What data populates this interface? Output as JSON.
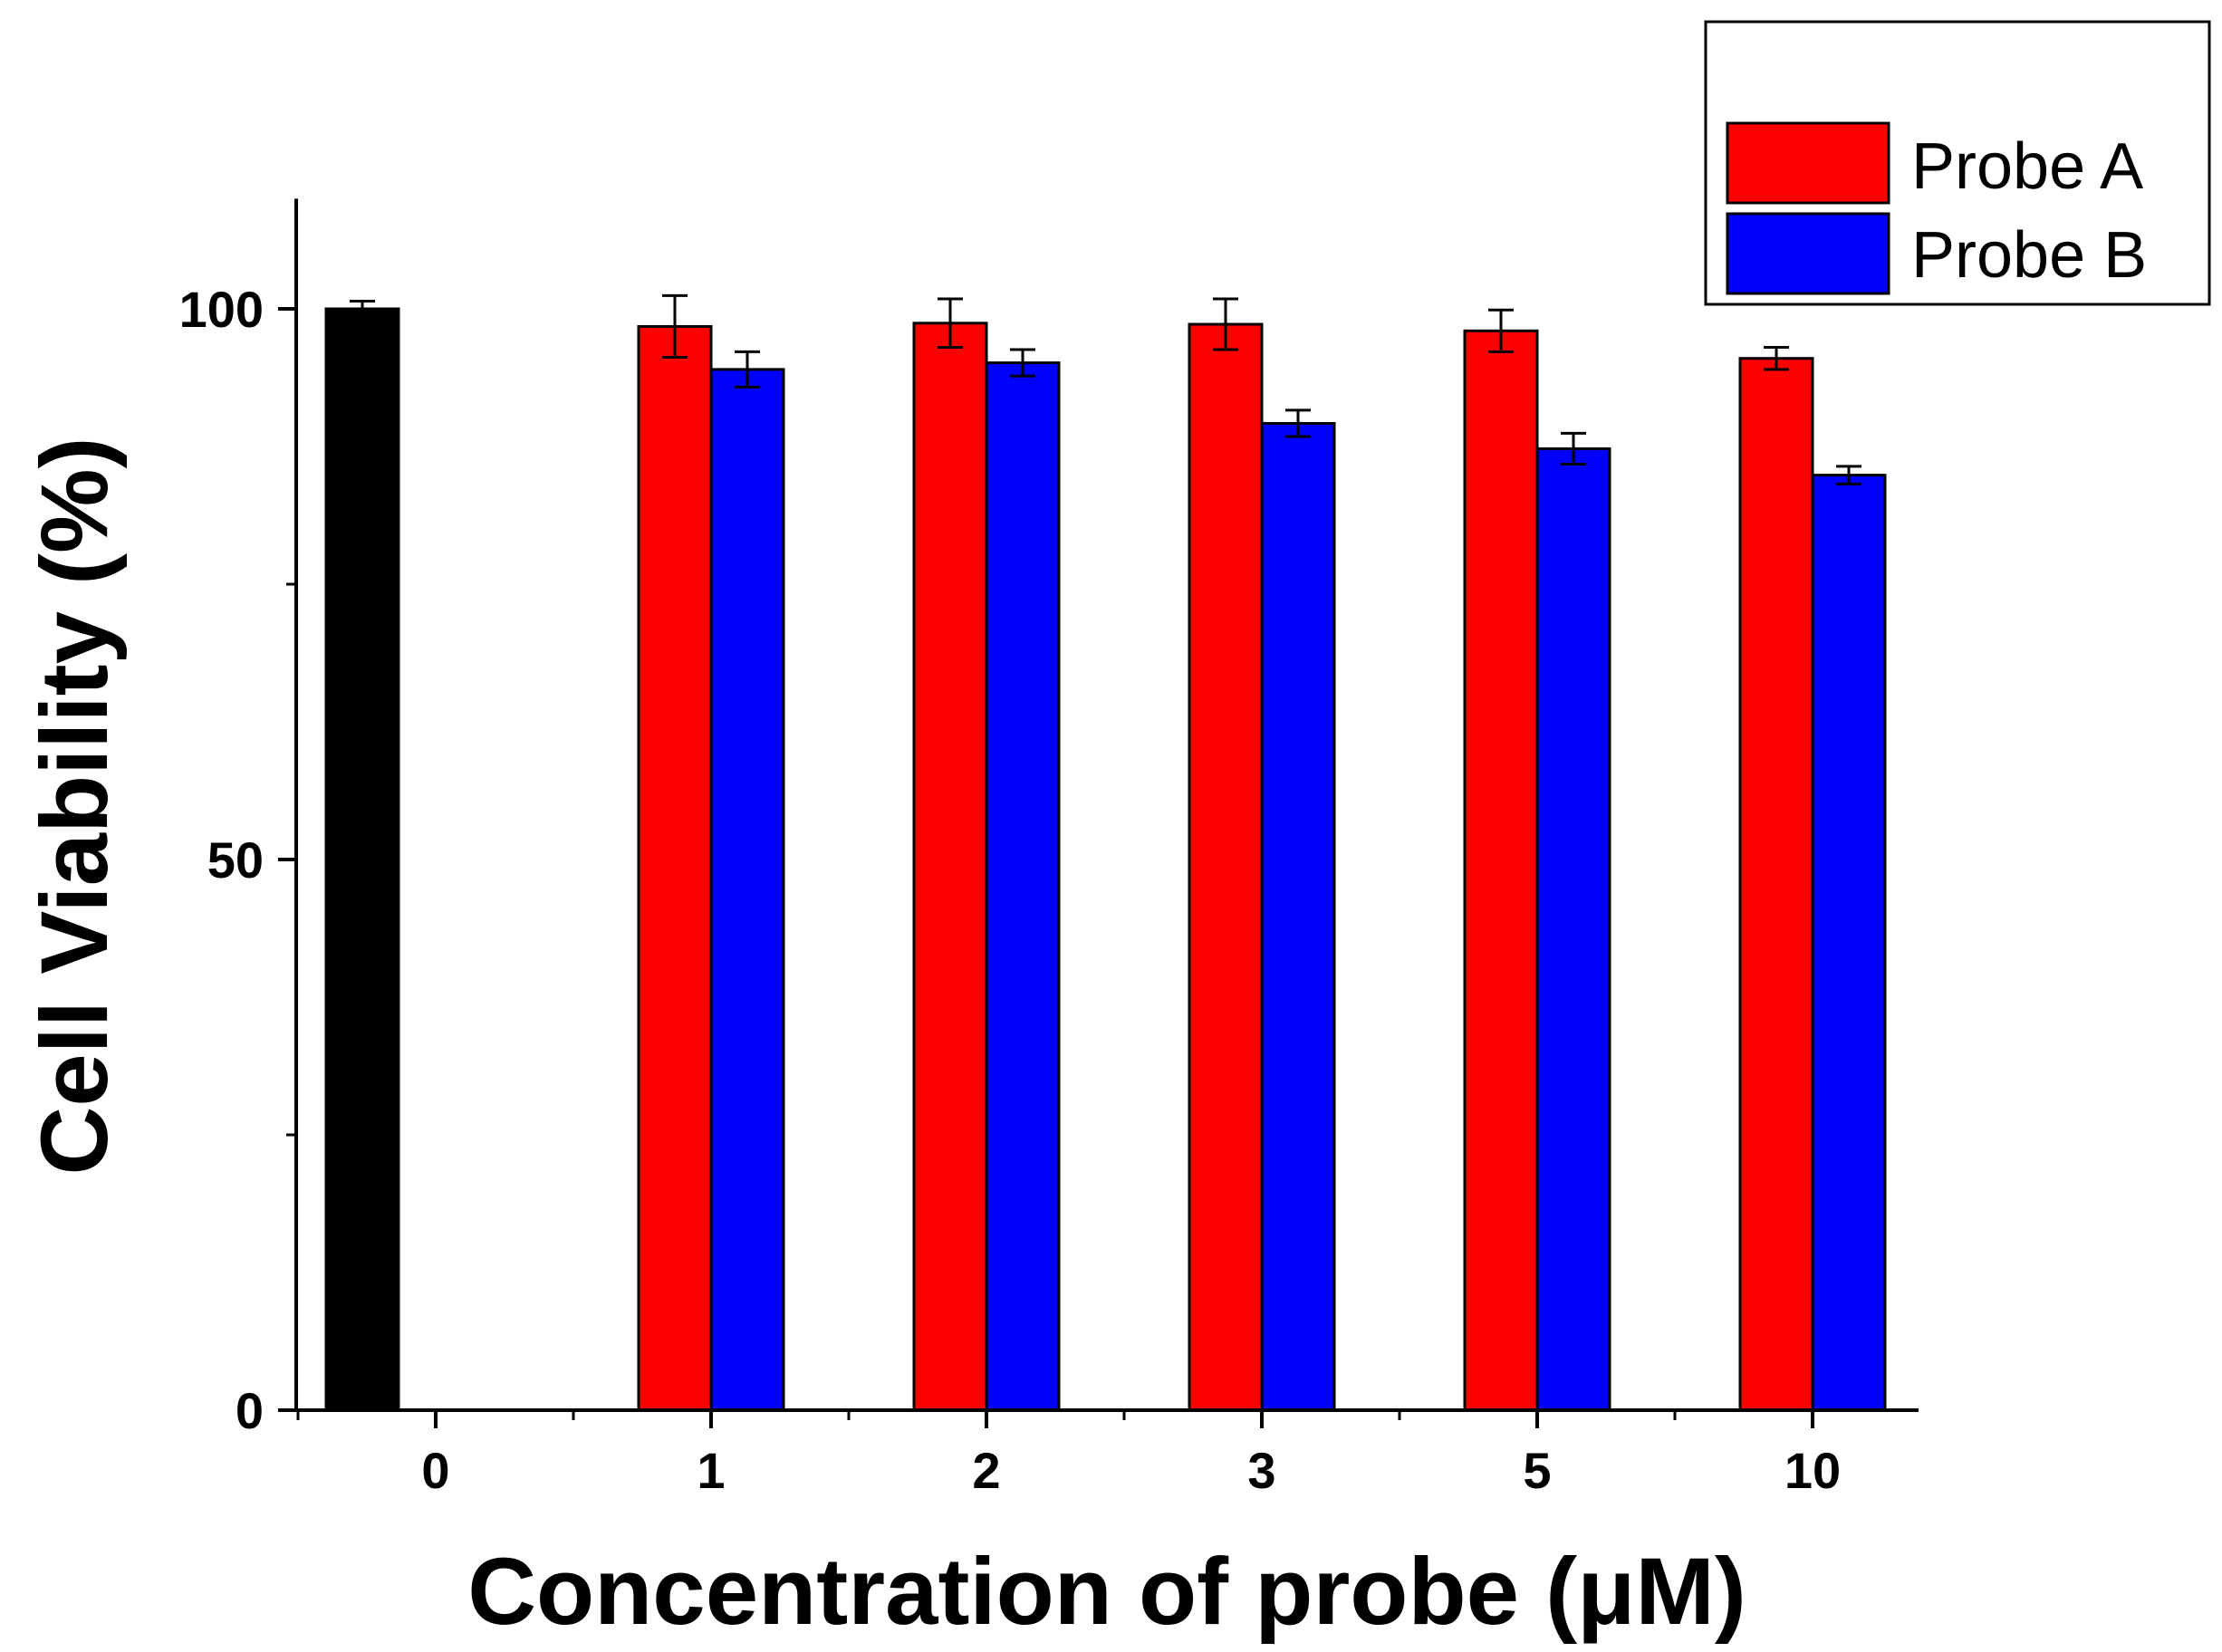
{
  "chart_data": {
    "type": "bar",
    "xlabel": "Concentration of probe (μM)",
    "ylabel": "Cell Viability (%)",
    "ylim": [
      0,
      110
    ],
    "yticks": [
      0,
      50,
      100
    ],
    "yminor_ticks": [
      25,
      75
    ],
    "grid": false,
    "legend_position": "top-right",
    "categories": [
      "0",
      "1",
      "2",
      "3",
      "5",
      "10"
    ],
    "control": {
      "category": "0",
      "value": 100.0,
      "error": 0.7,
      "color": "#000000"
    },
    "series": [
      {
        "name": "Probe A",
        "color": "#ff0000",
        "values": [
          null,
          98.4,
          98.7,
          98.6,
          98.0,
          95.5
        ],
        "errors": [
          null,
          2.8,
          2.2,
          2.3,
          1.9,
          1.0
        ]
      },
      {
        "name": "Probe B",
        "color": "#0000ff",
        "values": [
          null,
          94.5,
          95.1,
          89.6,
          87.3,
          84.9
        ],
        "errors": [
          null,
          1.6,
          1.2,
          1.2,
          1.4,
          0.8
        ]
      }
    ]
  }
}
